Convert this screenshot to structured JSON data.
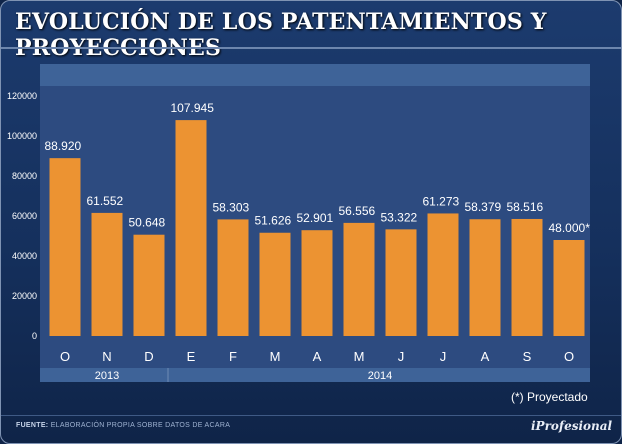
{
  "title": "EVOLUCIÓN DE LOS PATENTAMIENTOS Y PROYECCIONES",
  "colors": {
    "bar": "#ec9332",
    "plot_bg": "#2d4b80",
    "band": "#3e6398",
    "text": "#ffffff"
  },
  "chart_data": {
    "type": "bar",
    "categories": [
      "O",
      "N",
      "D",
      "E",
      "F",
      "M",
      "A",
      "M",
      "J",
      "J",
      "A",
      "S",
      "O"
    ],
    "values": [
      88920,
      61552,
      50648,
      107945,
      58303,
      51626,
      52901,
      56556,
      53322,
      61273,
      58379,
      58516,
      48000
    ],
    "data_labels": [
      "88.920",
      "61.552",
      "50.648",
      "107.945",
      "58.303",
      "51.626",
      "52.901",
      "56.556",
      "53.322",
      "61.273",
      "58.379",
      "58.516",
      "48.000*"
    ],
    "y_ticks": [
      "0",
      "20000",
      "40000",
      "60000",
      "80000",
      "100000",
      "120000"
    ],
    "ylim": [
      0,
      120000
    ],
    "grid": false,
    "year_groups": [
      {
        "label": "2013",
        "start": 0,
        "end": 2
      },
      {
        "label": "2014",
        "start": 3,
        "end": 12
      }
    ]
  },
  "footnote": "(*) Proyectado",
  "source": {
    "label": "FUENTE:",
    "text": "ELABORACIÓN PROPIA SOBRE DATOS DE ACARA"
  },
  "brand": "iProfesional"
}
